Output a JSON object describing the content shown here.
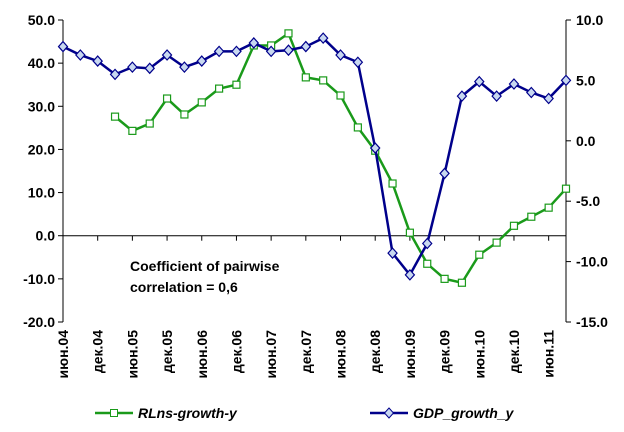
{
  "chart_data": {
    "type": "line",
    "categories": [
      "июн.04",
      null,
      "дек.04",
      null,
      "июн.05",
      null,
      "дек.05",
      null,
      "июн.06",
      null,
      "дек.06",
      null,
      "июн.07",
      null,
      "дек.07",
      null,
      "июн.08",
      null,
      "дек.08",
      null,
      "июн.09",
      null,
      "дек.09",
      null,
      "июн.10",
      null,
      "дек.10",
      null,
      "июн.11",
      null
    ],
    "series": [
      {
        "name": "RLns-growth-y",
        "color": "#1a9a1a",
        "values": [
          null,
          null,
          null,
          27.6,
          24.3,
          26.0,
          31.8,
          28.1,
          30.9,
          34.1,
          35.0,
          44.1,
          44.1,
          46.9,
          36.7,
          36.0,
          32.5,
          25.1,
          19.7,
          12.1,
          0.7,
          -6.5,
          -10.0,
          -10.9,
          -4.4,
          -1.6,
          2.3,
          4.4,
          6.5,
          10.9
        ]
      },
      {
        "name": "GDP_growth_y",
        "color": "#00008b",
        "axis": "y2",
        "values": [
          7.8,
          7.1,
          6.6,
          5.5,
          6.1,
          6.0,
          7.1,
          6.1,
          6.6,
          7.4,
          7.4,
          8.1,
          7.4,
          7.5,
          7.8,
          8.5,
          7.1,
          6.5,
          -0.6,
          -9.3,
          -11.1,
          -8.5,
          -2.7,
          3.7,
          4.9,
          3.7,
          4.7,
          4.0,
          3.5,
          5.0
        ]
      }
    ],
    "ylim": [
      -20,
      50
    ],
    "yticks": [
      {
        "value": -20,
        "label": "-20.0"
      },
      {
        "value": -10,
        "label": "-10.0"
      },
      {
        "value": 0,
        "label": "0.0"
      },
      {
        "value": 10,
        "label": "10.0"
      },
      {
        "value": 20,
        "label": "20.0"
      },
      {
        "value": 30,
        "label": "30.0"
      },
      {
        "value": 40,
        "label": "40.0"
      },
      {
        "value": 50,
        "label": "50.0"
      }
    ],
    "y2lim": [
      -15,
      10
    ],
    "y2ticks": [
      {
        "value": -15,
        "label": "-15.0"
      },
      {
        "value": -10,
        "label": "-10.0"
      },
      {
        "value": -5,
        "label": "-5.0"
      },
      {
        "value": 0,
        "label": "0.0"
      },
      {
        "value": 5,
        "label": "5.0"
      },
      {
        "value": 10,
        "label": "10.0"
      }
    ],
    "annotations": [
      "Coefficient of pairwise",
      "correlation = 0,6"
    ],
    "legend": "bottom",
    "grid": false
  }
}
